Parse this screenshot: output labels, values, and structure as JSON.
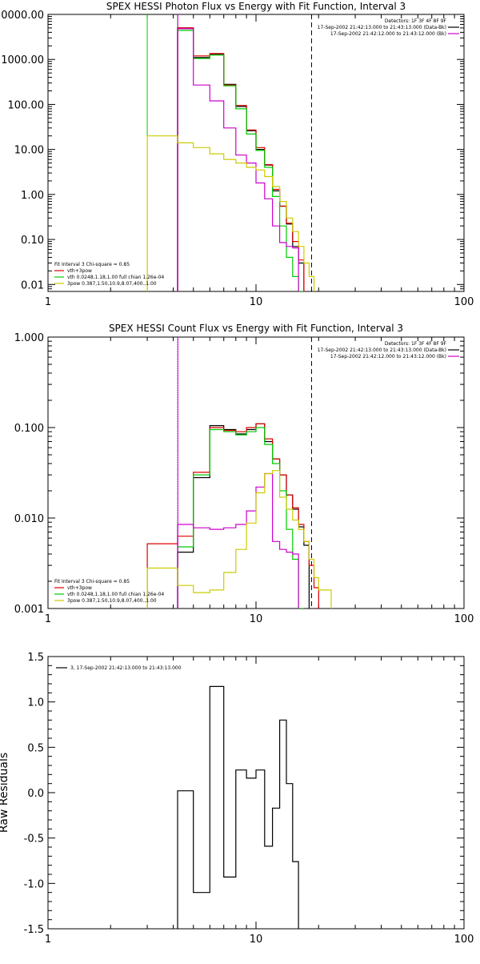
{
  "chart_data": [
    {
      "type": "line",
      "title": "SPEX HESSI Photon Flux vs Energy with Fit Function, Interval 3",
      "ylabel": "",
      "xlabel": "",
      "xscale": "log",
      "yscale": "log",
      "xlim": [
        1,
        100
      ],
      "ylim": [
        0.007,
        10000
      ],
      "x_ticks": [
        {
          "value": 1,
          "label": "1"
        },
        {
          "value": 10,
          "label": "10"
        },
        {
          "value": 100,
          "label": "100"
        }
      ],
      "y_ticks": [
        {
          "value": 10000,
          "label": "10000.00"
        },
        {
          "value": 1000,
          "label": "1000.00"
        },
        {
          "value": 100,
          "label": "100.00"
        },
        {
          "value": 10,
          "label": "10.00"
        },
        {
          "value": 1,
          "label": "1.00"
        },
        {
          "value": 0.1,
          "label": "0.10"
        },
        {
          "value": 0.01,
          "label": "0.01"
        }
      ],
      "legend_top_right": [
        {
          "text": "Detectors: 1F 3F 4F 8F 9F",
          "color": ""
        },
        {
          "text": "17-Sep-2002 21:42:13.000 to 21:43:13.000 (Data-Bk)",
          "color": "#000000"
        },
        {
          "text": "17-Sep-2002 21:42:12.000 to 21:43:12.000 (Bk)",
          "color": "#cc00cc"
        }
      ],
      "legend_bottom_left": [
        {
          "text": "Fit Interval 3   Chi-square = 0.85",
          "color": ""
        },
        {
          "text": "vth+3pow",
          "color": "#dd0000"
        },
        {
          "text": "vth 0.0248,1.18,1.00  full chian 1.26e-04",
          "color": "#00cc00"
        },
        {
          "text": "3pow 0.387,1.50,10.9,8.07,400.,1.00",
          "color": "#cccc00"
        }
      ],
      "vlines": [
        {
          "x": 3.0,
          "color": "#00cc00",
          "style": "solid"
        },
        {
          "x": 4.2,
          "color": "#00cc00",
          "style": "solid"
        },
        {
          "x": 4.21,
          "color": "#cc00cc",
          "style": "solid"
        },
        {
          "x": 18.5,
          "color": "#000000",
          "style": "dashed"
        }
      ],
      "bin_edges": [
        3,
        4.2,
        5,
        6,
        7,
        8,
        9,
        10,
        11,
        12,
        13,
        14,
        15,
        16,
        17,
        18,
        19,
        20,
        23
      ],
      "series": [
        {
          "color": "#000000",
          "values": [
            null,
            5000,
            1100,
            1300,
            280,
            90,
            26,
            10,
            4.5,
            1.2,
            0.55,
            0.22,
            0.07,
            0.03,
            null,
            null,
            null,
            null
          ]
        },
        {
          "color": "#dd0000",
          "values": [
            null,
            5000,
            1200,
            1350,
            270,
            95,
            27,
            11,
            4.6,
            1.3,
            0.55,
            0.23,
            0.09,
            0.035,
            null,
            null,
            null,
            null
          ]
        },
        {
          "color": "#00cc00",
          "values": [
            null,
            4400,
            1050,
            1250,
            260,
            80,
            22,
            9.5,
            4.0,
            0.9,
            0.2,
            0.04,
            0.015,
            0.004,
            null,
            null,
            null,
            null
          ]
        },
        {
          "color": "#cc00cc",
          "values": [
            null,
            4800,
            270,
            120,
            30,
            7.5,
            5.0,
            1.8,
            0.8,
            0.2,
            0.085,
            0.07,
            0.065,
            null,
            null,
            null,
            null,
            null
          ]
        },
        {
          "color": "#cccc00",
          "values": [
            20,
            14,
            11,
            8,
            6,
            5,
            4,
            3.5,
            2.5,
            1.5,
            0.7,
            0.3,
            0.15,
            0.07,
            0.03,
            0.015,
            null,
            null
          ]
        }
      ]
    },
    {
      "type": "line",
      "title": "SPEX HESSI Count Flux vs Energy with Fit Function, Interval 3",
      "ylabel": "",
      "xlabel": "",
      "xscale": "log",
      "yscale": "log",
      "xlim": [
        1,
        100
      ],
      "ylim": [
        0.001,
        1.0
      ],
      "x_ticks": [
        {
          "value": 1,
          "label": "1"
        },
        {
          "value": 10,
          "label": "10"
        },
        {
          "value": 100,
          "label": "100"
        }
      ],
      "y_ticks": [
        {
          "value": 1.0,
          "label": "1.000"
        },
        {
          "value": 0.1,
          "label": "0.100"
        },
        {
          "value": 0.01,
          "label": "0.010"
        },
        {
          "value": 0.001,
          "label": "0.001"
        }
      ],
      "legend_top_right": [
        {
          "text": "Detectors: 1F 3F 4F 8F 9F",
          "color": ""
        },
        {
          "text": "17-Sep-2002 21:42:13.000 to 21:43:13.000 (Data-Bk)",
          "color": "#000000"
        },
        {
          "text": "17-Sep-2002 21:42:12.000 to 21:43:12.000 (Bk)",
          "color": "#cc00cc"
        }
      ],
      "legend_bottom_left": [
        {
          "text": "Fit Interval 3   Chi-square = 0.85",
          "color": ""
        },
        {
          "text": "vth+3pow",
          "color": "#dd0000"
        },
        {
          "text": "vth 0.0248,1.18,1.00  full chian 1.26e-04",
          "color": "#00cc00"
        },
        {
          "text": "3pow 0.387,1.50,10.9,8.07,400.,1.00",
          "color": "#cccc00"
        }
      ],
      "vlines": [
        {
          "x": 4.2,
          "color": "#000000",
          "style": "dotted"
        },
        {
          "x": 4.21,
          "color": "#cc00cc",
          "style": "solid"
        },
        {
          "x": 18.5,
          "color": "#000000",
          "style": "dashed"
        }
      ],
      "bin_edges": [
        3,
        4.2,
        5,
        6,
        7,
        8,
        9,
        10,
        11,
        12,
        13,
        14,
        15,
        16,
        17,
        18,
        19,
        20,
        23
      ],
      "series": [
        {
          "color": "#000000",
          "values": [
            null,
            0.0042,
            0.028,
            0.105,
            0.095,
            0.085,
            0.095,
            0.11,
            0.07,
            0.045,
            0.03,
            0.018,
            0.0125,
            0.008,
            0.005,
            null,
            null,
            null
          ]
        },
        {
          "color": "#dd0000",
          "values": [
            0.0052,
            0.0063,
            0.032,
            0.1,
            0.093,
            0.09,
            0.1,
            0.11,
            0.075,
            0.045,
            0.03,
            0.018,
            0.013,
            0.0085,
            0.0055,
            0.003,
            0.0017,
            null
          ]
        },
        {
          "color": "#00cc00",
          "values": [
            null,
            0.0048,
            0.03,
            0.095,
            0.09,
            0.083,
            0.09,
            0.1,
            0.065,
            0.04,
            0.02,
            0.0075,
            0.0035,
            0.001,
            null,
            null,
            null,
            null
          ]
        },
        {
          "color": "#cc00cc",
          "values": [
            null,
            0.0085,
            0.0078,
            0.0075,
            0.0078,
            0.0085,
            0.012,
            0.022,
            0.031,
            0.0055,
            0.0045,
            0.0042,
            0.004,
            null,
            null,
            null,
            null,
            null
          ]
        },
        {
          "color": "#cccc00",
          "values": [
            0.0028,
            0.0018,
            0.0015,
            0.0016,
            0.0025,
            0.0045,
            0.0088,
            0.019,
            0.031,
            0.0335,
            0.017,
            0.0125,
            0.0095,
            0.0075,
            0.0055,
            0.0035,
            0.0022,
            0.0016
          ]
        }
      ]
    },
    {
      "type": "line",
      "title": "",
      "ylabel": "Raw Residuals",
      "xlabel": "",
      "xscale": "log",
      "yscale": "linear",
      "xlim": [
        1,
        100
      ],
      "ylim": [
        -1.5,
        1.5
      ],
      "x_ticks": [
        {
          "value": 1,
          "label": "1"
        },
        {
          "value": 10,
          "label": "10"
        },
        {
          "value": 100,
          "label": "100"
        }
      ],
      "y_ticks": [
        {
          "value": 1.5,
          "label": "1.5"
        },
        {
          "value": 1.0,
          "label": "1.0"
        },
        {
          "value": 0.5,
          "label": "0.5"
        },
        {
          "value": 0.0,
          "label": "0.0"
        },
        {
          "value": -0.5,
          "label": "-0.5"
        },
        {
          "value": -1.0,
          "label": "-1.0"
        },
        {
          "value": -1.5,
          "label": "-1.5"
        }
      ],
      "legend_top_left": [
        {
          "text": "3, 17-Sep-2002 21:42:13.000 to 21:43:13.000",
          "color": "#000000"
        }
      ],
      "bin_edges": [
        4.2,
        5,
        6,
        7,
        8,
        9,
        10,
        11,
        12,
        13,
        14,
        15,
        16,
        17,
        18.5
      ],
      "series": [
        {
          "color": "#000000",
          "values": [
            0.02,
            -1.1,
            1.17,
            -0.93,
            0.25,
            0.16,
            0.25,
            -0.59,
            -0.17,
            0.8,
            0.1,
            -0.76,
            null,
            null
          ]
        }
      ]
    }
  ]
}
